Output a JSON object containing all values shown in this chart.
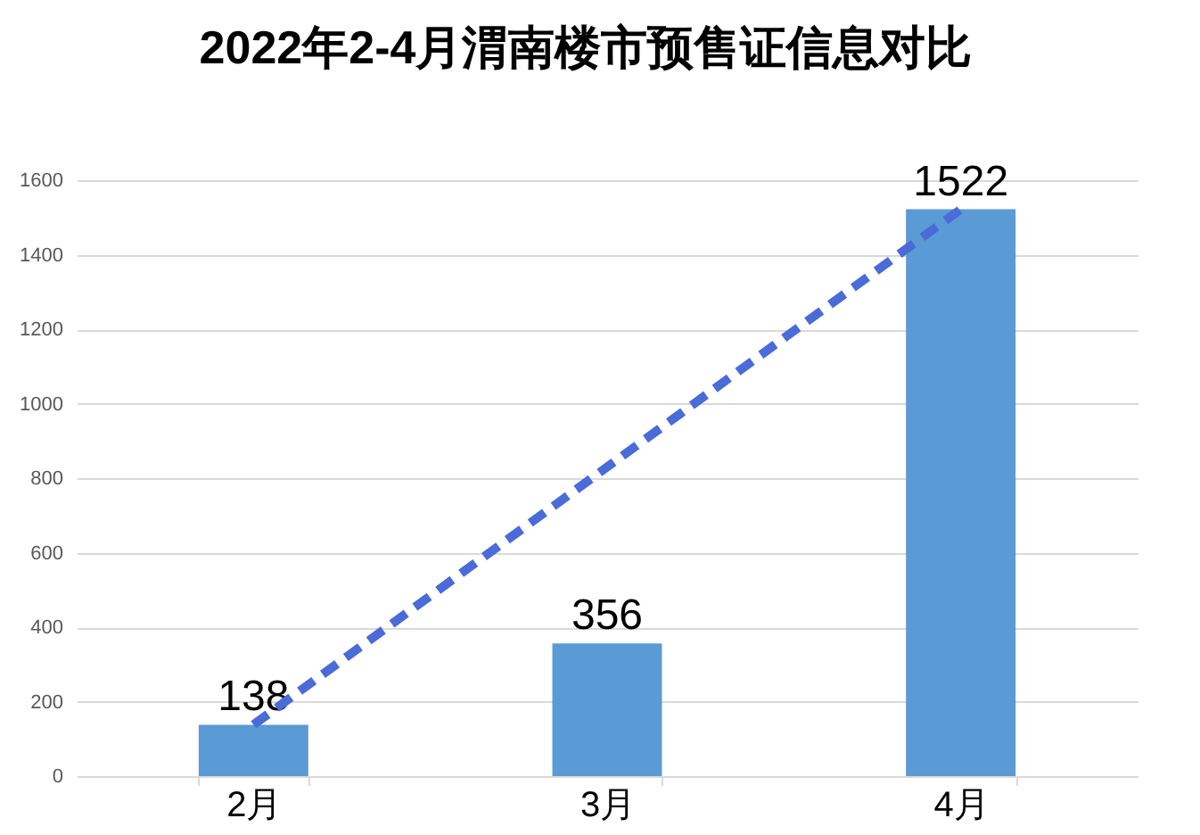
{
  "chart_data": {
    "type": "bar",
    "title": "2022年2-4月渭南楼市预售证信息对比",
    "categories": [
      "2月",
      "3月",
      "4月"
    ],
    "series": [
      {
        "color": "#5b9bd5",
        "values": [
          138,
          356,
          1522
        ],
        "value_labels": [
          "138",
          "356",
          "1522"
        ]
      },
      {
        "type": "line",
        "x": [
          "2月",
          "4月"
        ],
        "values": [
          138,
          1522
        ],
        "color": "#4a6bd8",
        "line_style": "dashed"
      }
    ],
    "ylim": [
      0,
      1600
    ],
    "yticks": [
      0,
      200,
      400,
      600,
      800,
      1000,
      1200,
      1400,
      1600
    ],
    "grid": "y"
  }
}
